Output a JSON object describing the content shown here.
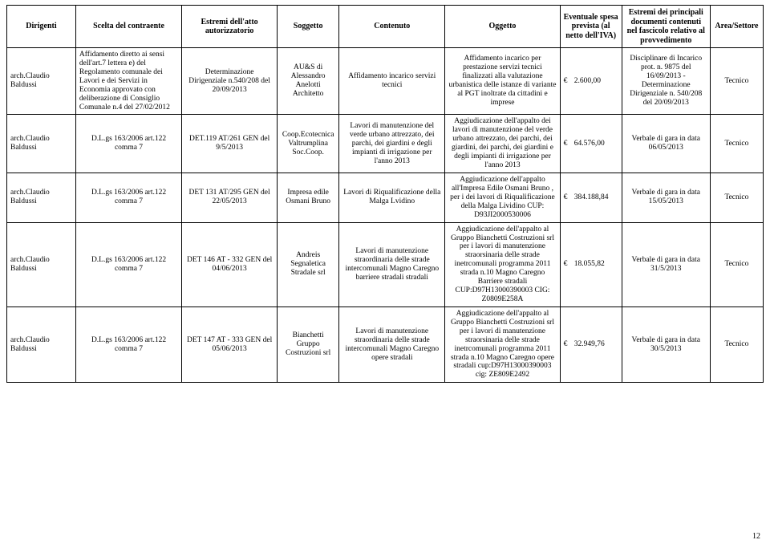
{
  "headers": {
    "dirigenti": "Dirigenti",
    "scelta": "Scelta del contraente",
    "estremi_atto": "Estremi dell'atto autorizzatorio",
    "soggetto": "Soggetto",
    "contenuto": "Contenuto",
    "oggetto": "Oggetto",
    "spesa": "Eventuale spesa prevista (al netto dell'IVA)",
    "documenti": "Estremi dei principali documenti contenuti nel fascicolo relativo al provvedimento",
    "area": "Area/Settore"
  },
  "currency_symbol": "€",
  "page_number": "12",
  "rows": [
    {
      "dirigenti": "arch.Claudio Baldussi",
      "scelta": "Affidamento diretto ai sensi dell'art.7 lettera e) del Regolamento comunale dei Lavori e dei Servizi in Economia approvato con deliberazione di Consiglio Comunale n.4 del 27/02/2012",
      "estremi": "Determinazione Dirigenziale n.540/208 del 20/09/2013",
      "soggetto": "AU&S di Alessandro Anelotti Architetto",
      "contenuto": "Affidamento incarico servizi tecnici",
      "oggetto": "Affidamento incarico per prestazione servizi tecnici finalizzati alla valutazione urbanistica delle istanze di variante al PGT inoltrate da cittadini e imprese",
      "spesa": "2.600,00",
      "documenti": "Disciplinare di Incarico prot. n. 9875 del 16/09/2013   -  Determinazione Dirigenziale n. 540/208 del 20/09/2013",
      "area": "Tecnico"
    },
    {
      "dirigenti": "arch.Claudio Baldussi",
      "scelta": "D.L.gs 163/2006 art.122 comma 7",
      "estremi": "DET.119 AT/261 GEN del 9/5/2013",
      "soggetto": "Coop.Ecotecnica Valtrumplina Soc.Coop.",
      "contenuto": "Lavori di manutenzione del verde urbano attrezzato, dei parchi, dei giardini e degli impianti di irrigazione per l'anno 2013",
      "oggetto": "Aggiudicazione dell'appalto dei lavori di manutenzione del verde urbano attrezzato, dei parchi, dei giardini, dei parchi, dei giardini e degli impianti di irrigazione per l'anno 2013",
      "spesa": "64.576,00",
      "documenti": "Verbale di gara in data 06/05/2013",
      "area": "Tecnico"
    },
    {
      "dirigenti": "arch.Claudio Baldussi",
      "scelta": "D.L.gs 163/2006 art.122 comma 7",
      "estremi": "DET 131 AT/295 GEN del 22/05/2013",
      "soggetto": "Impresa edile Osmani Bruno",
      "contenuto": "Lavori di Riqualificazione della Malga Lvidino",
      "oggetto": "Aggiudicazione dell'appalto all'Impresa Edile Osmani Bruno , per i  dei lavori di Riqualificazione della Malga Lividino CUP: D93JI2000530006",
      "spesa": "384.188,84",
      "documenti": "Verbale di gara in data 15/05/2013",
      "area": "Tecnico"
    },
    {
      "dirigenti": "arch.Claudio Baldussi",
      "scelta": "D.L.gs 163/2006 art.122 comma 7",
      "estremi": "DET 146 AT - 332 GEN del 04/06/2013",
      "soggetto": "Andreis Segnaletica Stradale srl",
      "contenuto": "Lavori di manutenzione straordinaria delle strade intercomunali Magno Caregno barriere stradali stradali",
      "oggetto": "Aggiudicazione dell'appalto al Gruppo Bianchetti Costruzioni srl per i lavori di manutenzione straorsinaria delle strade inetrcomunali programma 2011 strada n.10 Magno Caregno Barriere stradali CUP:D97H13000390003 CIG:  Z0809E258A",
      "spesa": "18.055,82",
      "documenti": "Verbale di gara in data 31/5/2013",
      "area": "Tecnico"
    },
    {
      "dirigenti": "arch.Claudio Baldussi",
      "scelta": "D.L.gs 163/2006 art.122 comma 7",
      "estremi": "DET 147 AT - 333 GEN del 05/06/2013",
      "soggetto": "Bianchetti Gruppo Costruzioni srl",
      "contenuto": "Lavori di manutenzione straordinaria delle strade intercomunali Magno Caregno opere stradali",
      "oggetto": "Aggiudicazione dell'appalto al Gruppo Bianchetti Costruzioni srl per i lavori di manutenzione straorsinaria delle strade inetrcomunali programma 2011 strada n.10 Magno Caregno opere stradali cup:D97H13000390003 cig: ZE809E2492",
      "spesa": "32.949,76",
      "documenti": "Verbale di gara in data 30/5/2013",
      "area": "Tecnico"
    }
  ]
}
